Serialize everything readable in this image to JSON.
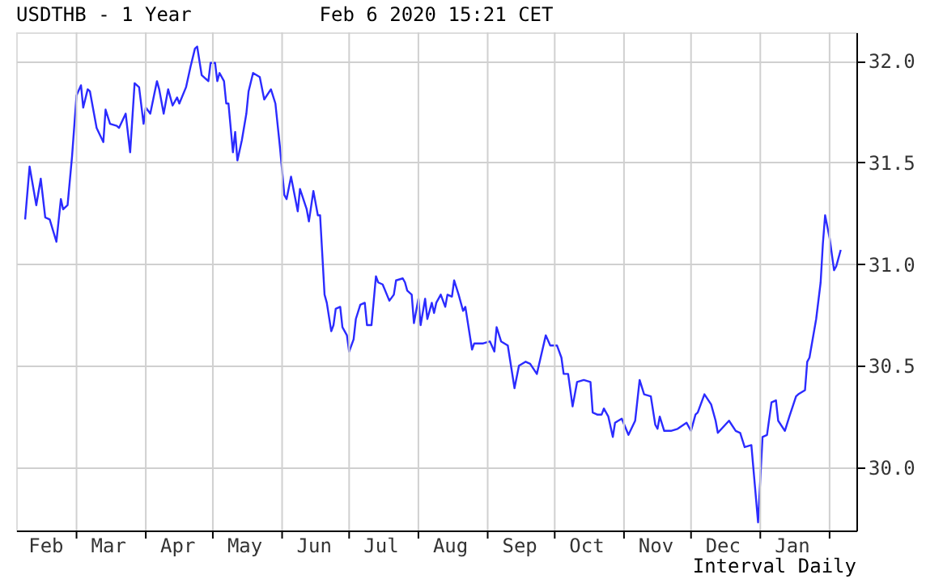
{
  "chart_data": {
    "type": "line",
    "title": "USDTHB - 1 Year",
    "subtitle": "Feb 6 2020 15:21 CET",
    "annotations": [
      "Interval Daily"
    ],
    "x": [
      "2019-02-06",
      "2019-02-08",
      "2019-02-11",
      "2019-02-13",
      "2019-02-15",
      "2019-02-17",
      "2019-02-20",
      "2019-02-22",
      "2019-02-23",
      "2019-02-25",
      "2019-02-27",
      "2019-03-01",
      "2019-03-03",
      "2019-03-04",
      "2019-03-06",
      "2019-03-07",
      "2019-03-10",
      "2019-03-13",
      "2019-03-14",
      "2019-03-16",
      "2019-03-19",
      "2019-03-20",
      "2019-03-23",
      "2019-03-25",
      "2019-03-27",
      "2019-03-29",
      "2019-03-31",
      "2019-04-01",
      "2019-04-03",
      "2019-04-06",
      "2019-04-07",
      "2019-04-09",
      "2019-04-11",
      "2019-04-13",
      "2019-04-15",
      "2019-04-16",
      "2019-04-19",
      "2019-04-21",
      "2019-04-23",
      "2019-04-24",
      "2019-04-26",
      "2019-04-29",
      "2019-04-30",
      "2019-05-02",
      "2019-05-03",
      "2019-05-04",
      "2019-05-06",
      "2019-05-07",
      "2019-05-08",
      "2019-05-10",
      "2019-05-11",
      "2019-05-12",
      "2019-05-14",
      "2019-05-16",
      "2019-05-17",
      "2019-05-19",
      "2019-05-22",
      "2019-05-24",
      "2019-05-27",
      "2019-05-29",
      "2019-05-31",
      "2019-06-02",
      "2019-06-03",
      "2019-06-05",
      "2019-06-08",
      "2019-06-09",
      "2019-06-12",
      "2019-06-13",
      "2019-06-15",
      "2019-06-17",
      "2019-06-18",
      "2019-06-20",
      "2019-06-21",
      "2019-06-23",
      "2019-06-24",
      "2019-06-25",
      "2019-06-27",
      "2019-06-28",
      "2019-06-30",
      "2019-07-01",
      "2019-07-03",
      "2019-07-04",
      "2019-07-06",
      "2019-07-08",
      "2019-07-09",
      "2019-07-11",
      "2019-07-13",
      "2019-07-14",
      "2019-07-16",
      "2019-07-19",
      "2019-07-21",
      "2019-07-22",
      "2019-07-25",
      "2019-07-26",
      "2019-07-27",
      "2019-07-29",
      "2019-07-30",
      "2019-08-01",
      "2019-08-02",
      "2019-08-04",
      "2019-08-05",
      "2019-08-07",
      "2019-08-08",
      "2019-08-09",
      "2019-08-11",
      "2019-08-13",
      "2019-08-14",
      "2019-08-16",
      "2019-08-17",
      "2019-08-19",
      "2019-08-21",
      "2019-08-22",
      "2019-08-25",
      "2019-08-26",
      "2019-08-30",
      "2019-09-02",
      "2019-09-04",
      "2019-09-05",
      "2019-09-07",
      "2019-09-10",
      "2019-09-13",
      "2019-09-15",
      "2019-09-18",
      "2019-09-20",
      "2019-09-23",
      "2019-09-27",
      "2019-09-29",
      "2019-10-02",
      "2019-10-04",
      "2019-10-05",
      "2019-10-07",
      "2019-10-09",
      "2019-10-11",
      "2019-10-14",
      "2019-10-17",
      "2019-10-18",
      "2019-10-20",
      "2019-10-22",
      "2019-10-23",
      "2019-10-25",
      "2019-10-27",
      "2019-10-28",
      "2019-10-31",
      "2019-11-03",
      "2019-11-06",
      "2019-11-08",
      "2019-11-10",
      "2019-11-13",
      "2019-11-15",
      "2019-11-16",
      "2019-11-17",
      "2019-11-19",
      "2019-11-22",
      "2019-11-25",
      "2019-11-29",
      "2019-12-01",
      "2019-12-03",
      "2019-12-04",
      "2019-12-07",
      "2019-12-10",
      "2019-12-12",
      "2019-12-13",
      "2019-12-18",
      "2019-12-21",
      "2019-12-23",
      "2019-12-25",
      "2019-12-28",
      "2019-12-31",
      "2020-01-02",
      "2020-01-04",
      "2020-01-06",
      "2020-01-08",
      "2020-01-09",
      "2020-01-12",
      "2020-01-14",
      "2020-01-17",
      "2020-01-18",
      "2020-01-21",
      "2020-01-22",
      "2020-01-23",
      "2020-01-26",
      "2020-01-28",
      "2020-01-29",
      "2020-01-30",
      "2020-02-01",
      "2020-02-03",
      "2020-02-04",
      "2020-02-06"
    ],
    "series": [
      {
        "color": "#2b2bff",
        "values": [
          31.22,
          31.48,
          31.29,
          31.42,
          31.23,
          31.22,
          31.11,
          31.32,
          31.27,
          31.29,
          31.53,
          31.83,
          31.88,
          31.77,
          31.86,
          31.85,
          31.67,
          31.6,
          31.76,
          31.69,
          31.68,
          31.67,
          31.74,
          31.55,
          31.89,
          31.87,
          31.69,
          31.77,
          31.74,
          31.9,
          31.86,
          31.74,
          31.86,
          31.78,
          31.82,
          31.79,
          31.87,
          31.97,
          32.06,
          32.07,
          31.93,
          31.9,
          31.99,
          31.99,
          31.9,
          31.94,
          31.9,
          31.79,
          31.79,
          31.55,
          31.65,
          31.51,
          31.61,
          31.74,
          31.85,
          31.94,
          31.92,
          31.81,
          31.86,
          31.79,
          31.58,
          31.34,
          31.32,
          31.43,
          31.26,
          31.37,
          31.27,
          31.21,
          31.36,
          31.24,
          31.24,
          30.85,
          30.81,
          30.67,
          30.7,
          30.78,
          30.79,
          30.69,
          30.65,
          30.57,
          30.63,
          30.73,
          30.8,
          30.81,
          30.7,
          30.7,
          30.94,
          30.91,
          30.9,
          30.82,
          30.85,
          30.92,
          30.93,
          30.91,
          30.87,
          30.85,
          30.71,
          30.83,
          30.7,
          30.83,
          30.73,
          30.81,
          30.76,
          30.81,
          30.85,
          30.79,
          30.85,
          30.84,
          30.92,
          30.85,
          30.77,
          30.79,
          30.58,
          30.61,
          30.61,
          30.62,
          30.57,
          30.69,
          30.62,
          30.6,
          30.39,
          30.5,
          30.52,
          30.51,
          30.46,
          30.65,
          30.6,
          30.6,
          30.54,
          30.46,
          30.46,
          30.3,
          30.42,
          30.43,
          30.42,
          30.27,
          30.26,
          30.26,
          30.29,
          30.25,
          30.15,
          30.22,
          30.24,
          30.16,
          30.23,
          30.43,
          30.36,
          30.35,
          30.21,
          30.19,
          30.25,
          30.18,
          30.18,
          30.19,
          30.22,
          30.18,
          30.26,
          30.27,
          30.36,
          30.31,
          30.23,
          30.17,
          30.23,
          30.18,
          30.17,
          30.1,
          30.11,
          29.73,
          30.15,
          30.16,
          30.32,
          30.33,
          30.23,
          30.18,
          30.25,
          30.35,
          30.36,
          30.38,
          30.52,
          30.54,
          30.73,
          30.91,
          31.1,
          31.24,
          31.13,
          30.97,
          30.99,
          31.07
        ]
      }
    ],
    "xlim": [
      "2019-02-02",
      "2020-02-13"
    ],
    "xticks": [
      {
        "value": "2019-02-15",
        "label": "Feb"
      },
      {
        "value": "2019-03-01",
        "label": null
      },
      {
        "value": "2019-03-15",
        "label": "Mar"
      },
      {
        "value": "2019-04-01",
        "label": null
      },
      {
        "value": "2019-04-15",
        "label": "Apr"
      },
      {
        "value": "2019-05-01",
        "label": null
      },
      {
        "value": "2019-05-15",
        "label": "May"
      },
      {
        "value": "2019-06-01",
        "label": null
      },
      {
        "value": "2019-06-15",
        "label": "Jun"
      },
      {
        "value": "2019-07-01",
        "label": null
      },
      {
        "value": "2019-07-15",
        "label": "Jul"
      },
      {
        "value": "2019-08-01",
        "label": null
      },
      {
        "value": "2019-08-15",
        "label": "Aug"
      },
      {
        "value": "2019-09-01",
        "label": null
      },
      {
        "value": "2019-09-15",
        "label": "Sep"
      },
      {
        "value": "2019-10-01",
        "label": null
      },
      {
        "value": "2019-10-15",
        "label": "Oct"
      },
      {
        "value": "2019-11-01",
        "label": null
      },
      {
        "value": "2019-11-15",
        "label": "Nov"
      },
      {
        "value": "2019-12-01",
        "label": null
      },
      {
        "value": "2019-12-15",
        "label": "Dec"
      },
      {
        "value": "2020-01-01",
        "label": null
      },
      {
        "value": "2020-01-15",
        "label": "Jan"
      },
      {
        "value": "2020-02-01",
        "label": null
      }
    ],
    "ylim": [
      29.69,
      32.14
    ],
    "yticks": [
      {
        "value": 30,
        "label": "30.0"
      },
      {
        "value": 30.5,
        "label": "30.5"
      },
      {
        "value": 31,
        "label": "31.0"
      },
      {
        "value": 31.5,
        "label": "31.5"
      },
      {
        "value": 32,
        "label": "32.0"
      }
    ],
    "grid": true,
    "legend": false,
    "marker": "none",
    "line_style": "solid"
  }
}
